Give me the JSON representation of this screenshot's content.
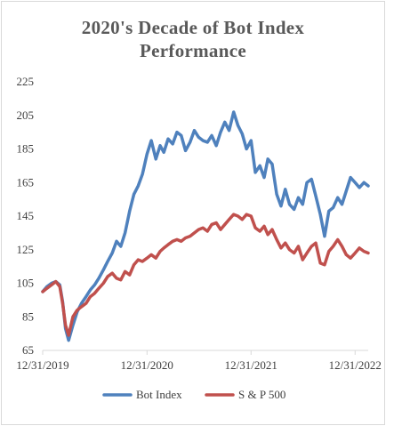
{
  "chart_data": {
    "type": "line",
    "title_line1": "2020's Decade of Bot Index",
    "title_line2": "Performance",
    "xlabel": "",
    "ylabel": "",
    "ylim": [
      65,
      225
    ],
    "yticks": [
      65,
      85,
      105,
      125,
      145,
      165,
      185,
      205,
      225
    ],
    "xlim": [
      "2019-12-31",
      "2023-02-15"
    ],
    "xticks": [
      "12/31/2019",
      "12/31/2020",
      "12/31/2021",
      "12/31/2022"
    ],
    "grid": false,
    "legend": "bottom",
    "x": [
      "2019-12-31",
      "2020-01-15",
      "2020-01-31",
      "2020-02-15",
      "2020-02-29",
      "2020-03-10",
      "2020-03-20",
      "2020-03-31",
      "2020-04-15",
      "2020-04-30",
      "2020-05-15",
      "2020-05-31",
      "2020-06-15",
      "2020-06-30",
      "2020-07-15",
      "2020-07-31",
      "2020-08-15",
      "2020-08-31",
      "2020-09-15",
      "2020-09-30",
      "2020-10-15",
      "2020-10-31",
      "2020-11-15",
      "2020-11-30",
      "2020-12-15",
      "2020-12-31",
      "2021-01-15",
      "2021-01-31",
      "2021-02-15",
      "2021-02-28",
      "2021-03-15",
      "2021-03-31",
      "2021-04-15",
      "2021-04-30",
      "2021-05-15",
      "2021-05-31",
      "2021-06-15",
      "2021-06-30",
      "2021-07-15",
      "2021-07-31",
      "2021-08-15",
      "2021-08-31",
      "2021-09-15",
      "2021-09-30",
      "2021-10-15",
      "2021-10-31",
      "2021-11-15",
      "2021-11-30",
      "2021-12-15",
      "2021-12-31",
      "2022-01-15",
      "2022-01-31",
      "2022-02-15",
      "2022-02-28",
      "2022-03-15",
      "2022-03-31",
      "2022-04-15",
      "2022-04-30",
      "2022-05-15",
      "2022-05-31",
      "2022-06-15",
      "2022-06-30",
      "2022-07-15",
      "2022-07-31",
      "2022-08-15",
      "2022-08-31",
      "2022-09-15",
      "2022-09-30",
      "2022-10-15",
      "2022-10-31",
      "2022-11-15",
      "2022-11-30",
      "2022-12-15",
      "2022-12-31",
      "2023-01-15",
      "2023-01-31",
      "2023-02-15"
    ],
    "series": [
      {
        "name": "Bot Index",
        "color": "#4f81bd",
        "values": [
          100,
          103,
          105,
          106,
          104,
          94,
          78,
          71,
          80,
          88,
          93,
          97,
          101,
          104,
          108,
          113,
          118,
          123,
          130,
          127,
          135,
          148,
          158,
          163,
          170,
          182,
          190,
          179,
          187,
          183,
          191,
          188,
          195,
          193,
          184,
          189,
          196,
          192,
          190,
          189,
          193,
          187,
          195,
          201,
          196,
          207,
          199,
          194,
          185,
          190,
          171,
          175,
          168,
          179,
          176,
          158,
          151,
          161,
          152,
          149,
          156,
          152,
          165,
          167,
          157,
          146,
          133,
          148,
          150,
          156,
          152,
          160,
          168,
          165,
          162,
          165,
          163
        ]
      },
      {
        "name": "S & P 500",
        "color": "#c0504d",
        "values": [
          100,
          102,
          104,
          106,
          103,
          93,
          80,
          74,
          85,
          89,
          91,
          93,
          97,
          99,
          102,
          105,
          109,
          111,
          108,
          107,
          112,
          110,
          116,
          119,
          118,
          120,
          122,
          120,
          124,
          126,
          128,
          130,
          131,
          130,
          132,
          133,
          135,
          137,
          138,
          136,
          140,
          141,
          137,
          140,
          143,
          146,
          145,
          143,
          146,
          145,
          138,
          136,
          139,
          134,
          137,
          131,
          126,
          129,
          125,
          123,
          127,
          119,
          123,
          127,
          129,
          117,
          116,
          124,
          127,
          131,
          127,
          122,
          120,
          123,
          126,
          124,
          123
        ]
      }
    ]
  }
}
